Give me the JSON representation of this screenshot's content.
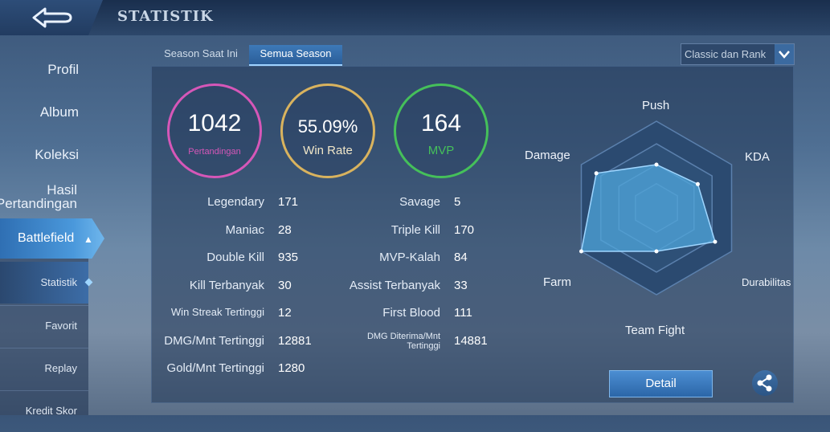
{
  "header": {
    "title": "STATISTIK"
  },
  "sidebar": {
    "items": [
      {
        "label": "Profil"
      },
      {
        "label": "Album"
      },
      {
        "label": "Koleksi"
      },
      {
        "label": "Hasil Pertandingan"
      }
    ],
    "active": {
      "label": "Battlefield"
    },
    "subitems": [
      {
        "label": "Statistik"
      },
      {
        "label": "Favorit"
      },
      {
        "label": "Replay"
      },
      {
        "label": "Kredit Skor"
      }
    ]
  },
  "tabs": [
    {
      "label": "Season Saat Ini"
    },
    {
      "label": "Semua Season"
    }
  ],
  "filter": {
    "selected": "Classic dan Rank"
  },
  "summary": {
    "matches": {
      "value": "1042",
      "label": "Pertandingan",
      "color": "#d657b8"
    },
    "winrate": {
      "value": "55.09%",
      "label": "Win Rate",
      "color": "#d9b35e"
    },
    "mvp": {
      "value": "164",
      "label": "MVP",
      "color": "#45c05a"
    }
  },
  "stats_left": [
    {
      "label": "Legendary",
      "value": "171"
    },
    {
      "label": "Maniac",
      "value": "28"
    },
    {
      "label": "Double Kill",
      "value": "935"
    },
    {
      "label": "Kill Terbanyak",
      "value": "30"
    },
    {
      "label": "Win Streak Tertinggi",
      "value": "12"
    },
    {
      "label": "DMG/Mnt Tertinggi",
      "value": "12881"
    },
    {
      "label": "Gold/Mnt Tertinggi",
      "value": "1280"
    }
  ],
  "stats_right": [
    {
      "label": "Savage",
      "value": "5"
    },
    {
      "label": "Triple Kill",
      "value": "170"
    },
    {
      "label": "MVP-Kalah",
      "value": "84"
    },
    {
      "label": "Assist Terbanyak",
      "value": "33"
    },
    {
      "label": "First Blood",
      "value": "111"
    },
    {
      "label": "DMG Diterima/Mnt Tertinggi",
      "value": "14881"
    }
  ],
  "radar": {
    "axes": [
      "Push",
      "KDA",
      "Durabilitas",
      "Team Fight",
      "Farm",
      "Damage"
    ],
    "values": [
      0.5,
      0.55,
      0.78,
      0.5,
      1.0,
      0.8
    ],
    "fill_color": "#4fa6db"
  },
  "buttons": {
    "detail": "Detail"
  }
}
